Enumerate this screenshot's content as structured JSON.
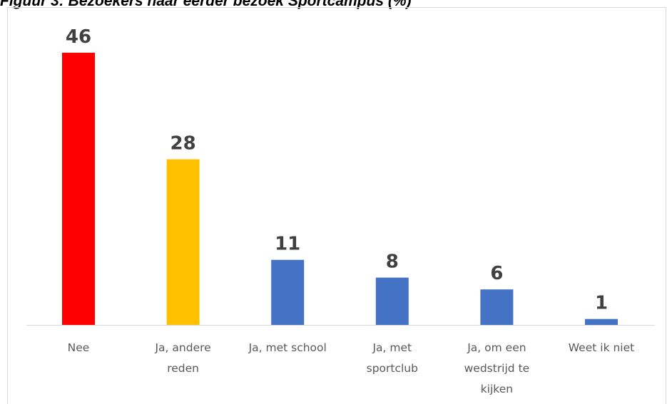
{
  "chart_data": {
    "type": "bar",
    "title": "Figuur 3: Bezoekers naar eerder bezoek Sportcampus (%)",
    "categories": [
      [
        "Nee"
      ],
      [
        "Ja, andere",
        "reden"
      ],
      [
        "Ja, met school"
      ],
      [
        "Ja, met",
        "sportclub"
      ],
      [
        "Ja, om een",
        "wedstrijd te",
        "kijken"
      ],
      [
        "Weet ik niet"
      ]
    ],
    "values": [
      46,
      28,
      11,
      8,
      6,
      1
    ],
    "colors": [
      "#ff0000",
      "#ffc000",
      "#4472c4",
      "#4472c4",
      "#4472c4",
      "#4472c4"
    ],
    "data_labels": true,
    "ylim": [
      0,
      46
    ],
    "grid": false,
    "legend": false
  }
}
